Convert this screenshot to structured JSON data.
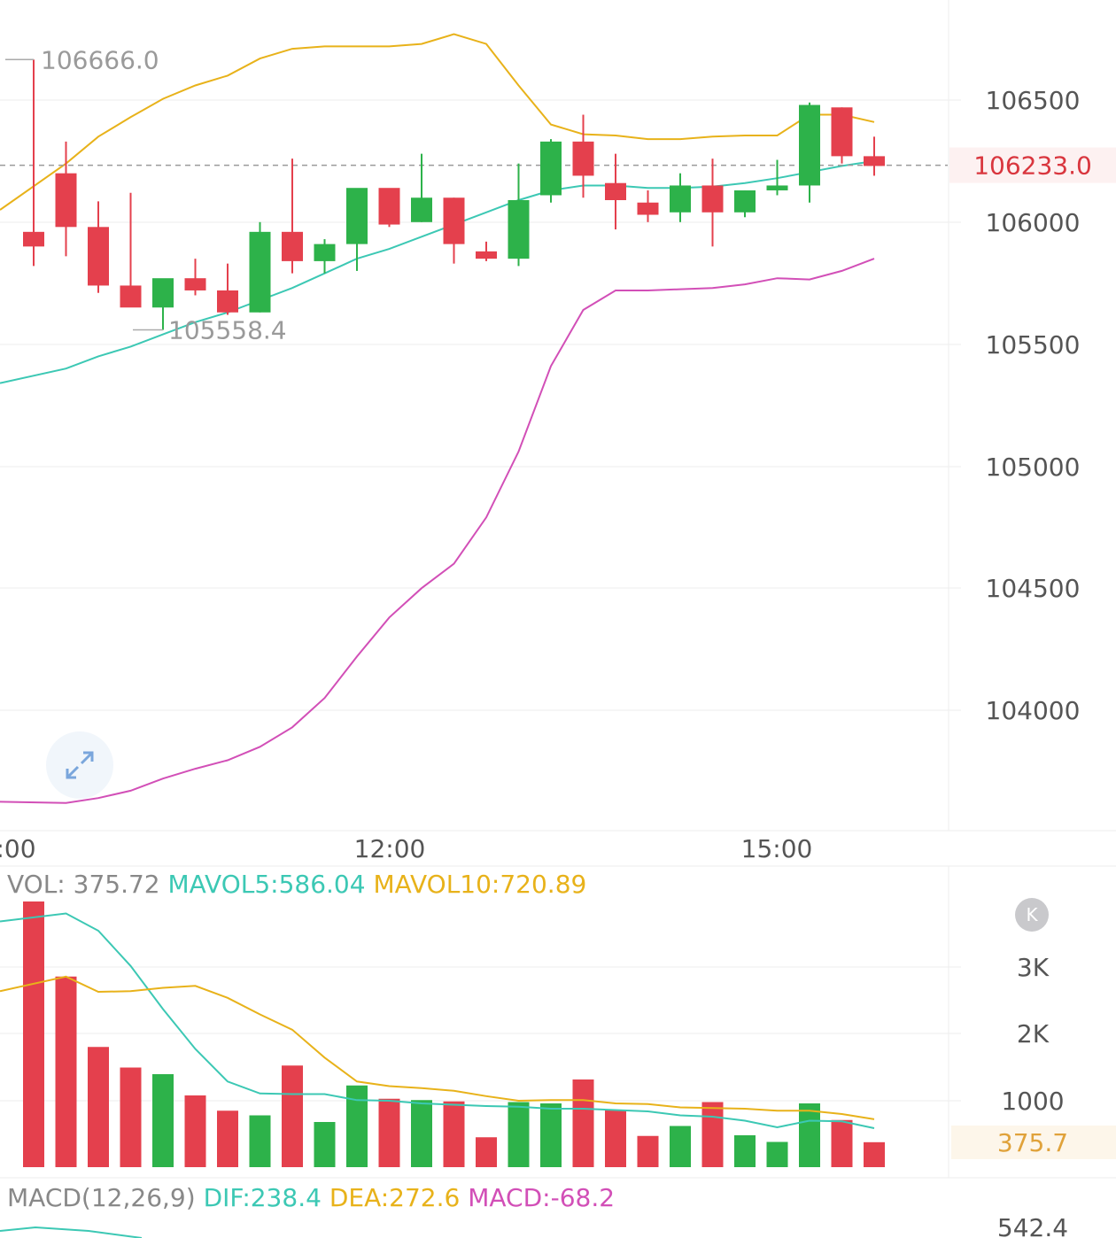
{
  "chart_data": {
    "type": "candlestick",
    "x_tick_labels": [
      ":00",
      "12:00",
      "15:00"
    ],
    "price_axis": {
      "ticks": [
        "106500",
        "106000",
        "105500",
        "105000",
        "104500",
        "104000"
      ],
      "range": [
        103600,
        106850
      ],
      "current_price_label": "106233.0",
      "current_price": 106233.0
    },
    "annotations": {
      "high_label": "106666.0",
      "high": 106666.0,
      "low_label": "105558.4",
      "low": 105558.4
    },
    "candles": [
      {
        "o": 105960,
        "h": 106666,
        "l": 105820,
        "c": 105900
      },
      {
        "o": 106200,
        "h": 106330,
        "l": 105860,
        "c": 105980
      },
      {
        "o": 105980,
        "h": 106085,
        "l": 105710,
        "c": 105740
      },
      {
        "o": 105740,
        "h": 106120,
        "l": 105660,
        "c": 105650
      },
      {
        "o": 105650,
        "h": 105760,
        "l": 105558.4,
        "c": 105770
      },
      {
        "o": 105770,
        "h": 105850,
        "l": 105700,
        "c": 105720
      },
      {
        "o": 105720,
        "h": 105830,
        "l": 105620,
        "c": 105630
      },
      {
        "o": 105630,
        "h": 106000,
        "l": 105630,
        "c": 105960
      },
      {
        "o": 105960,
        "h": 106260,
        "l": 105790,
        "c": 105840
      },
      {
        "o": 105840,
        "h": 105930,
        "l": 105790,
        "c": 105910
      },
      {
        "o": 105910,
        "h": 106135,
        "l": 105800,
        "c": 106140
      },
      {
        "o": 106140,
        "h": 106135,
        "l": 105980,
        "c": 105990
      },
      {
        "o": 106000,
        "h": 106280,
        "l": 106000,
        "c": 106100
      },
      {
        "o": 106100,
        "h": 106100,
        "l": 105830,
        "c": 105910
      },
      {
        "o": 105880,
        "h": 105920,
        "l": 105840,
        "c": 105850
      },
      {
        "o": 105850,
        "h": 106240,
        "l": 105820,
        "c": 106090
      },
      {
        "o": 106110,
        "h": 106340,
        "l": 106080,
        "c": 106330
      },
      {
        "o": 106330,
        "h": 106440,
        "l": 106100,
        "c": 106190
      },
      {
        "o": 106160,
        "h": 106280,
        "l": 105970,
        "c": 106090
      },
      {
        "o": 106080,
        "h": 106130,
        "l": 106000,
        "c": 106030
      },
      {
        "o": 106040,
        "h": 106200,
        "l": 106000,
        "c": 106150
      },
      {
        "o": 106150,
        "h": 106260,
        "l": 105900,
        "c": 106040
      },
      {
        "o": 106040,
        "h": 106130,
        "l": 106020,
        "c": 106130
      },
      {
        "o": 106130,
        "h": 106255,
        "l": 106110,
        "c": 106150
      },
      {
        "o": 106150,
        "h": 106490,
        "l": 106080,
        "c": 106480
      },
      {
        "o": 106470,
        "h": 106470,
        "l": 106240,
        "c": 106270
      },
      {
        "o": 106270,
        "h": 106350,
        "l": 106190,
        "c": 106230
      }
    ],
    "series": [
      {
        "name": "upper",
        "color": "#e8b21a",
        "values": [
          106050,
          106240,
          106350,
          106430,
          106505,
          106560,
          106600,
          106670,
          106710,
          106720,
          106720,
          106720,
          106730,
          106770,
          106730,
          106560,
          106400,
          106360,
          106355,
          106340,
          106340,
          106350,
          106355,
          106355,
          106440,
          106440,
          106410
        ]
      },
      {
        "name": "middle",
        "color": "#3cc8b4",
        "values": [
          105340,
          105400,
          105450,
          105490,
          105540,
          105590,
          105630,
          105680,
          105730,
          105790,
          105850,
          105890,
          105940,
          105990,
          106040,
          106090,
          106130,
          106150,
          106150,
          106140,
          106140,
          106145,
          106160,
          106180,
          106205,
          106230,
          106250
        ]
      },
      {
        "name": "lower",
        "color": "#d24fb7",
        "values": [
          103625,
          103620,
          103640,
          103670,
          103720,
          103760,
          103795,
          103850,
          103930,
          104050,
          104220,
          104380,
          104500,
          104600,
          104790,
          105060,
          105410,
          105640,
          105720,
          105720,
          105725,
          105730,
          105745,
          105770,
          105765,
          105800,
          105850
        ]
      }
    ],
    "volume": {
      "header": {
        "vol_label": "VOL: 375.72",
        "mavol5_label": "MAVOL5:586.04",
        "mavol10_label": "MAVOL10:720.89"
      },
      "axis_ticks": [
        "3K",
        "2K",
        "1000"
      ],
      "current_label": "375.7",
      "range": [
        0,
        4000
      ],
      "values": [
        4000,
        2870,
        1810,
        1500,
        1400,
        1080,
        850,
        780,
        1530,
        680,
        1230,
        1030,
        1010,
        990,
        450,
        980,
        960,
        1320,
        860,
        470,
        620,
        980,
        480,
        380,
        960,
        710,
        375.7
      ],
      "colors": [
        "r",
        "r",
        "r",
        "r",
        "g",
        "r",
        "r",
        "g",
        "r",
        "g",
        "g",
        "r",
        "g",
        "r",
        "r",
        "g",
        "g",
        "r",
        "r",
        "r",
        "g",
        "r",
        "g",
        "g",
        "g",
        "r",
        "r"
      ],
      "mavol5": [
        3700,
        3820,
        3560,
        3030,
        2380,
        1780,
        1290,
        1110,
        1100,
        1100,
        1010,
        1000,
        960,
        940,
        920,
        910,
        880,
        880,
        860,
        840,
        780,
        760,
        700,
        600,
        700,
        690,
        586
      ],
      "mavol10": [
        2650,
        2870,
        2640,
        2650,
        2700,
        2730,
        2550,
        2300,
        2070,
        1650,
        1290,
        1220,
        1190,
        1150,
        1070,
        1000,
        1010,
        1010,
        960,
        950,
        900,
        890,
        880,
        850,
        850,
        800,
        720.89
      ]
    },
    "macd": {
      "title": "MACD(12,26,9)",
      "dif_label": "DIF:238.4",
      "dea_label": "DEA:272.6",
      "macd_label": "MACD:-68.2",
      "axis_label": "542.4"
    }
  },
  "colors": {
    "up": "#2db24a",
    "down": "#e4404d",
    "grid": "#eeeeee",
    "axis_text": "#555555",
    "price_tag_bg": "#fdf1f1",
    "price_tag_text": "#d9363e"
  }
}
